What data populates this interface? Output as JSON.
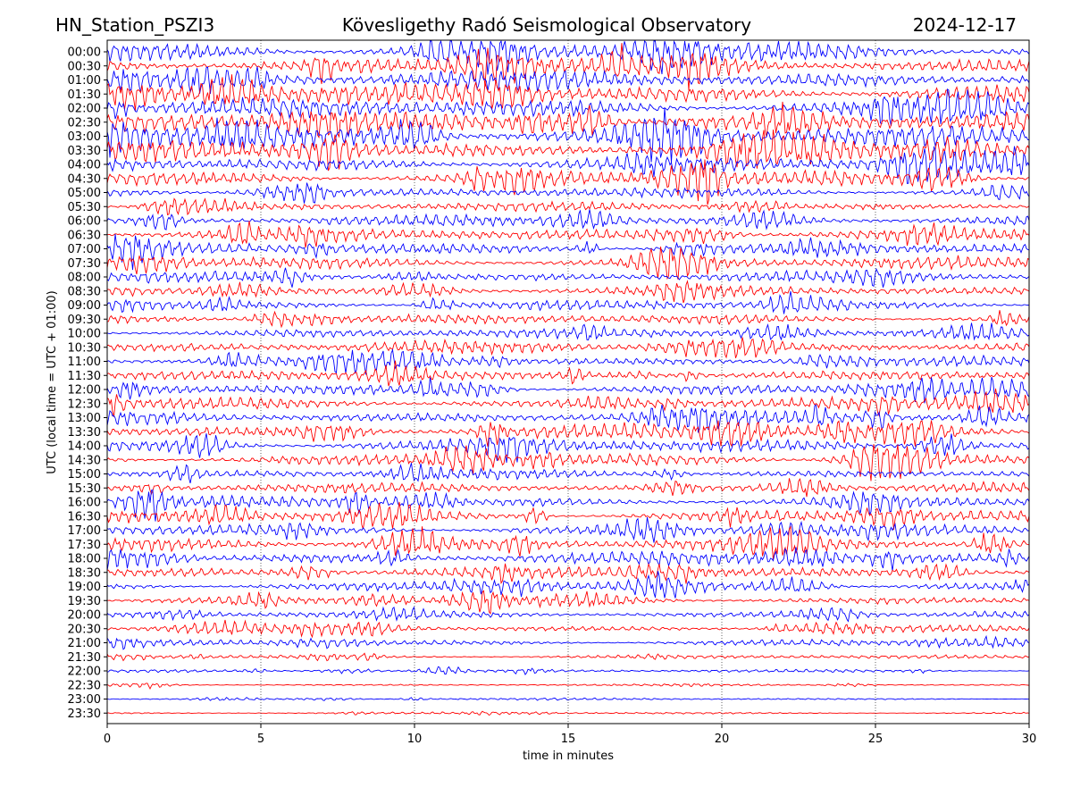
{
  "header": {
    "station": "HN_Station_PSZI3",
    "observatory": "Kövesligethy Radó Seismological Observatory",
    "date": "2024-12-17"
  },
  "chart_data": {
    "type": "line",
    "title": "Kövesligethy Radó Seismological Observatory",
    "xlabel": "time in minutes",
    "ylabel": "UTC (local time = UTC + 01:00)",
    "xlim": [
      0,
      30
    ],
    "xticks": [
      0,
      5,
      10,
      15,
      20,
      25,
      30
    ],
    "vertical_grid": "dotted at each x tick",
    "rows": [
      "00:00",
      "00:30",
      "01:00",
      "01:30",
      "02:00",
      "02:30",
      "03:00",
      "03:30",
      "04:00",
      "04:30",
      "05:00",
      "05:30",
      "06:00",
      "06:30",
      "07:00",
      "07:30",
      "08:00",
      "08:30",
      "09:00",
      "09:30",
      "10:00",
      "10:30",
      "11:00",
      "11:30",
      "12:00",
      "12:30",
      "13:00",
      "13:30",
      "14:00",
      "14:30",
      "15:00",
      "15:30",
      "16:00",
      "16:30",
      "17:00",
      "17:30",
      "18:00",
      "18:30",
      "19:00",
      "19:30",
      "20:00",
      "20:30",
      "21:00",
      "21:30",
      "22:00",
      "22:30",
      "23:00",
      "23:30"
    ],
    "trace_colors": [
      "#0000ff",
      "#ff0000"
    ],
    "relative_amplitude": [
      1.0,
      1.0,
      1.0,
      1.0,
      1.0,
      1.0,
      1.0,
      1.0,
      0.8,
      0.8,
      0.5,
      0.45,
      0.55,
      0.65,
      0.6,
      0.6,
      0.55,
      0.5,
      0.5,
      0.5,
      0.5,
      0.6,
      0.5,
      0.5,
      0.55,
      0.6,
      0.7,
      0.75,
      0.7,
      0.6,
      0.5,
      0.5,
      0.55,
      0.6,
      0.6,
      0.65,
      0.65,
      0.6,
      0.5,
      0.45,
      0.35,
      0.35,
      0.3,
      0.2,
      0.15,
      0.1,
      0.1,
      0.1
    ]
  }
}
